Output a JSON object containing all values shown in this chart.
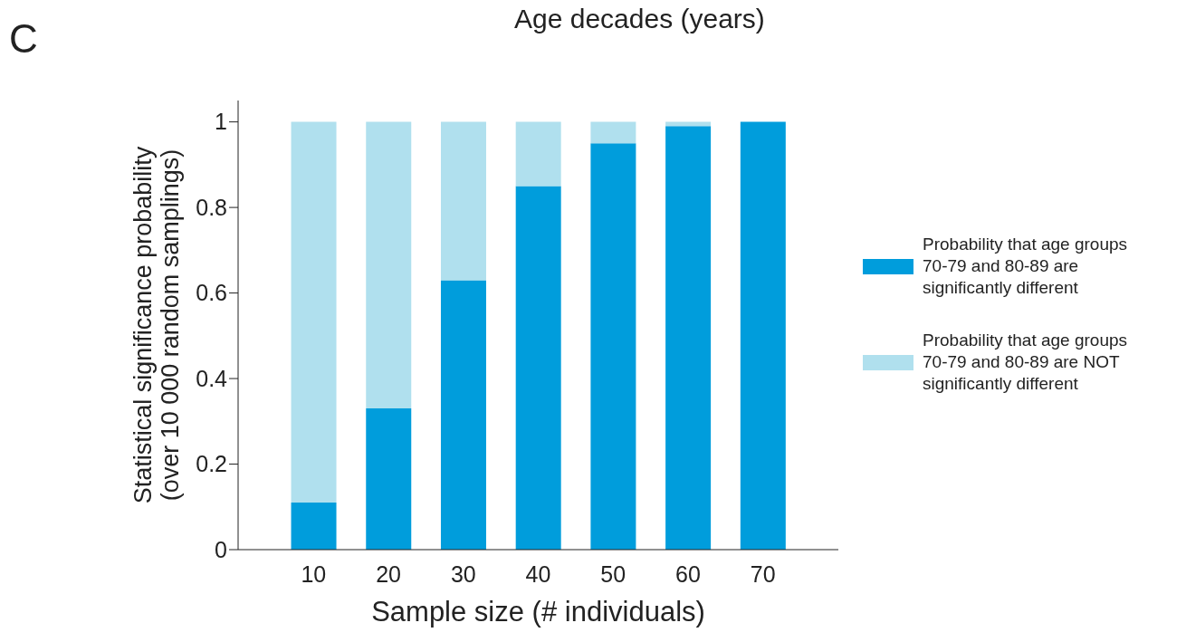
{
  "chart_data": {
    "type": "bar",
    "stacked": true,
    "categories": [
      "10",
      "20",
      "30",
      "40",
      "50",
      "60",
      "70"
    ],
    "series": [
      {
        "name": "Probability that age groups 70-79 and 80-89 are significantly different",
        "color": "#009ddc",
        "values": [
          0.11,
          0.33,
          0.63,
          0.85,
          0.95,
          0.99,
          1.0
        ]
      },
      {
        "name": "Probability that age groups 70-79 and 80-89 are NOT significantly different",
        "color": "#b0e0ee",
        "values": [
          0.89,
          0.67,
          0.37,
          0.15,
          0.05,
          0.01,
          0
        ]
      }
    ],
    "xlabel": "Sample size (# individuals)",
    "ylabel": "Statistical significance probability\n(over 10 000 random samplings)",
    "ylim": [
      0,
      1.05
    ],
    "yticks": [
      0,
      0.2,
      0.4,
      0.6,
      0.8,
      1
    ],
    "grid": false,
    "legend": "right",
    "annotations": [
      "C",
      "Age decades (years)"
    ]
  }
}
